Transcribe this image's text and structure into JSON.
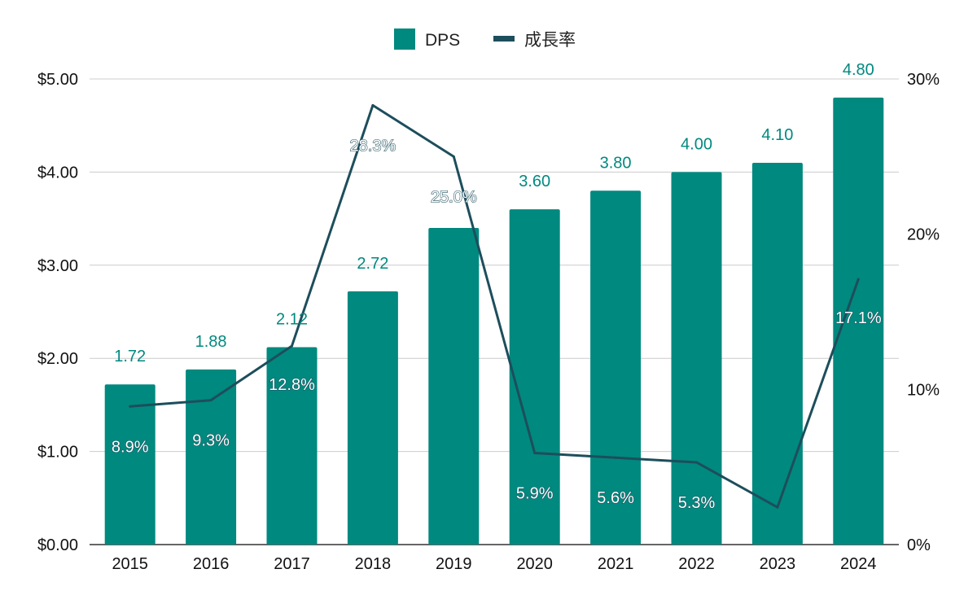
{
  "chart_data": {
    "type": "bar",
    "categories": [
      "2015",
      "2016",
      "2017",
      "2018",
      "2019",
      "2020",
      "2021",
      "2022",
      "2023",
      "2024"
    ],
    "series": [
      {
        "name": "DPS",
        "type": "bar",
        "axis": "left",
        "values": [
          1.72,
          1.88,
          2.12,
          2.72,
          3.4,
          3.6,
          3.8,
          4.0,
          4.1,
          4.8
        ],
        "labels": [
          "1.72",
          "1.88",
          "2.12",
          "2.72",
          "",
          "3.60",
          "3.80",
          "4.00",
          "4.10",
          "4.80"
        ]
      },
      {
        "name": "成長率",
        "type": "line",
        "axis": "right",
        "values": [
          8.9,
          9.3,
          12.8,
          28.3,
          25.0,
          5.9,
          5.6,
          5.3,
          2.4,
          17.1
        ],
        "labels": [
          "8.9%",
          "9.3%",
          "12.8%",
          "28.3%",
          "25.0%",
          "5.9%",
          "5.6%",
          "5.3%",
          "",
          "17.1%"
        ]
      }
    ],
    "y_left": {
      "ticks": [
        "$0.00",
        "$1.00",
        "$2.00",
        "$3.00",
        "$4.00",
        "$5.00"
      ],
      "range": [
        0,
        5
      ]
    },
    "y_right": {
      "ticks": [
        "0%",
        "10%",
        "20%",
        "30%"
      ],
      "range": [
        0,
        30
      ]
    },
    "grid": true,
    "legend": "top-center",
    "colors": {
      "bar": "#00897f",
      "line": "#1d4e5c",
      "bar_label": "#00897f",
      "grid": "#cccccc",
      "axis": "#333333"
    }
  }
}
